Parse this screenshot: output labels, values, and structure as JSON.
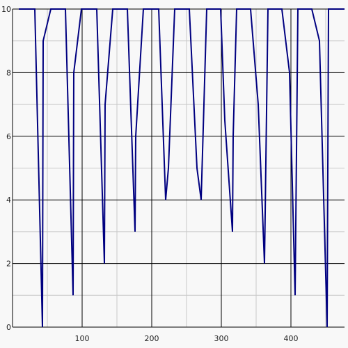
{
  "chart_data": {
    "type": "line",
    "x": [
      9,
      32,
      43,
      44,
      55,
      76,
      87,
      88,
      99,
      121,
      132,
      133,
      144,
      165,
      176,
      177,
      188,
      210,
      220,
      224,
      233,
      254,
      265,
      271,
      279,
      299,
      305,
      316,
      317,
      322,
      342,
      353,
      362,
      367,
      387,
      398,
      406,
      410,
      430,
      441,
      452,
      454,
      477
    ],
    "values": [
      10,
      10,
      0,
      9,
      10,
      10,
      1,
      8,
      10,
      10,
      2,
      7,
      10,
      10,
      3,
      6,
      10,
      10,
      4,
      5,
      10,
      10,
      5,
      4,
      10,
      10,
      6.5,
      3,
      6,
      10,
      10,
      7,
      2,
      10,
      10,
      8,
      1,
      10,
      10,
      9,
      0,
      10,
      10
    ],
    "color": "#000080",
    "xlim": [
      0,
      477
    ],
    "ylim": [
      0,
      10
    ],
    "xticks": [
      100,
      200,
      300,
      400
    ],
    "yticks": [
      0,
      2,
      4,
      6,
      8,
      10
    ],
    "xminor": [
      50,
      150,
      250,
      350,
      450
    ],
    "yminor": [
      1,
      3,
      5,
      7,
      9
    ],
    "grid": true
  }
}
